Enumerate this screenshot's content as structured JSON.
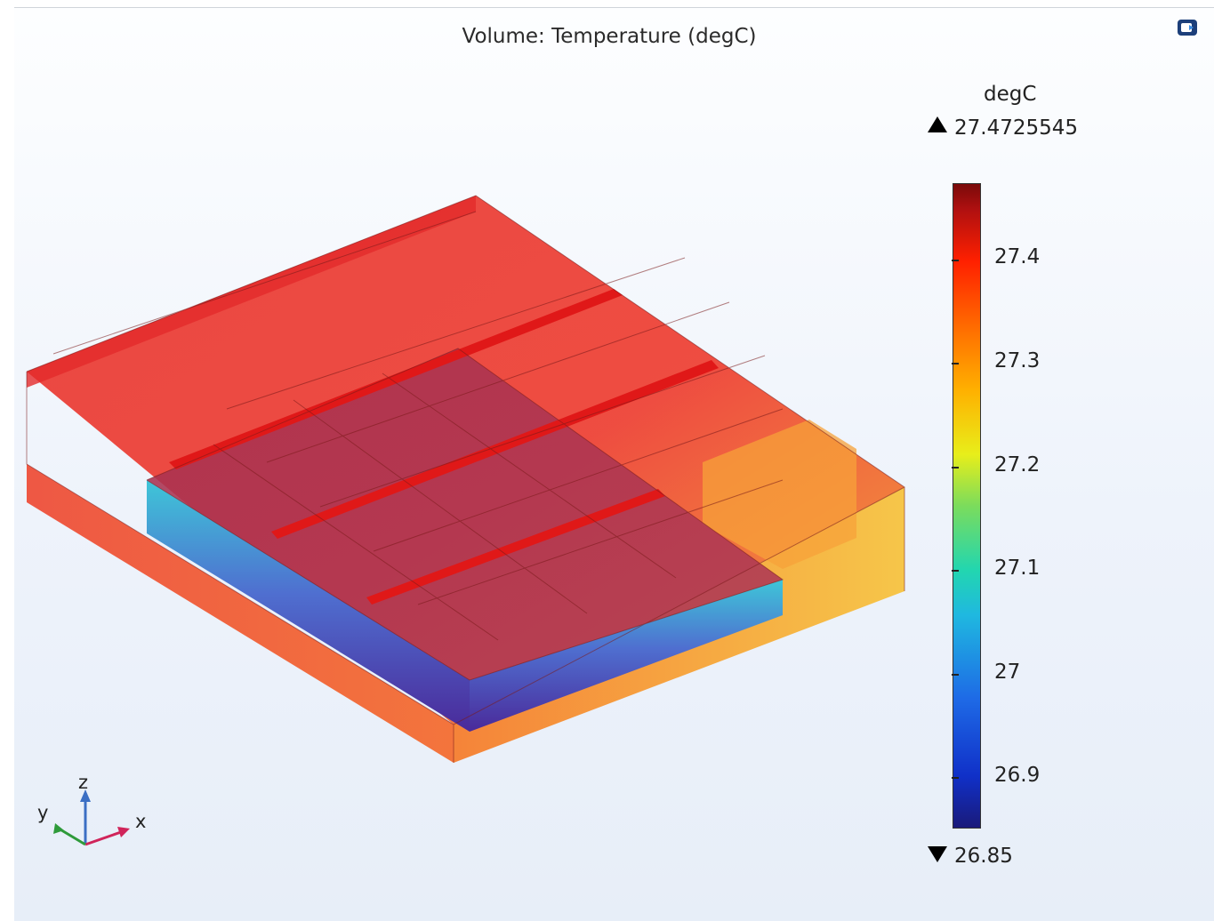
{
  "plot": {
    "title": "Volume: Temperature (degC)"
  },
  "colorbar": {
    "unit": "degC",
    "max": "27.4725545",
    "min": "26.85",
    "ticks": [
      "27.4",
      "27.3",
      "27.2",
      "27.1",
      "27",
      "26.9"
    ]
  },
  "axes": {
    "x": "x",
    "y": "y",
    "z": "z"
  },
  "icons": {
    "corner": "screenshot-icon"
  },
  "colors": {
    "hot": "#e8262a",
    "cold": "#2a2a9a",
    "mid": "#22c8d8",
    "warm": "#ff9a1a"
  }
}
